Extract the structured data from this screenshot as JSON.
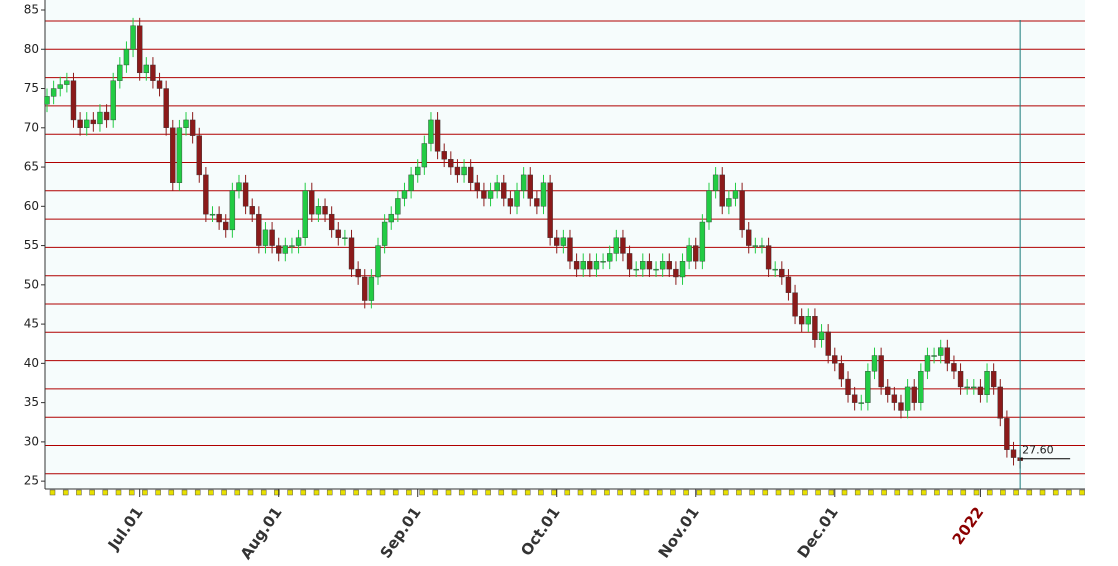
{
  "chart_data": {
    "type": "candlestick",
    "ylim": [
      24,
      85
    ],
    "yticks": [
      25,
      30,
      35,
      40,
      45,
      50,
      55,
      60,
      65,
      70,
      75,
      80,
      85
    ],
    "xticks": [
      {
        "value": 14,
        "label": "Jul.01"
      },
      {
        "value": 35,
        "label": "Aug.01"
      },
      {
        "value": 56,
        "label": "Sep.01"
      },
      {
        "value": 77,
        "label": "Oct.01"
      },
      {
        "value": 98,
        "label": "Nov.01"
      },
      {
        "value": 119,
        "label": "Dec.01"
      },
      {
        "value": 141,
        "label": "2022",
        "color": "#8b0000"
      }
    ],
    "up_color": "#22cc44",
    "down_color": "#8b1a1a",
    "grid_color": "#b00000",
    "last_label": {
      "value": 27.6,
      "label": "27.60"
    },
    "open": [
      73,
      74,
      75,
      75.5,
      76,
      71,
      70,
      71,
      70.5,
      72,
      71,
      76,
      78,
      80,
      83,
      77,
      78,
      76,
      75,
      70,
      63,
      70,
      71,
      69,
      64,
      59,
      59,
      58,
      57,
      62,
      63,
      60,
      59,
      55,
      57,
      55,
      54,
      55,
      55,
      56,
      62,
      59,
      60,
      59,
      57,
      56,
      56,
      52,
      51,
      48,
      51,
      55,
      58,
      59,
      61,
      62,
      64,
      65,
      68,
      71,
      67,
      66,
      65,
      64,
      65,
      63,
      62,
      61,
      62,
      63,
      61,
      60,
      62,
      64,
      61,
      60,
      63,
      56,
      55,
      56,
      53,
      52,
      53,
      52,
      53,
      53,
      54,
      56,
      54,
      52,
      52,
      53,
      52,
      52,
      53,
      52,
      51,
      53,
      55,
      53,
      58,
      62,
      64,
      60,
      61,
      62,
      57,
      55,
      55,
      55,
      52,
      52,
      51,
      49,
      46,
      45,
      46,
      43,
      44,
      41,
      40,
      38,
      36,
      35,
      35,
      39,
      41,
      37,
      36,
      35,
      34,
      37,
      35,
      39,
      41,
      41,
      42,
      40,
      39,
      37,
      37,
      37,
      36,
      39,
      37,
      33,
      29,
      28
    ],
    "high": [
      75,
      76,
      76.5,
      77,
      77,
      72,
      72,
      72,
      73,
      73,
      77,
      79,
      81,
      84,
      84,
      79,
      79,
      77,
      76,
      71,
      71,
      72,
      72,
      70,
      65,
      60,
      60,
      59,
      63,
      64,
      64,
      61,
      60,
      58,
      58,
      56,
      56,
      56,
      57,
      63,
      63,
      61,
      61,
      60,
      58,
      57,
      57,
      53,
      52,
      52,
      56,
      59,
      60,
      62,
      63,
      65,
      66,
      69,
      72,
      72,
      68,
      67,
      66,
      66,
      66,
      64,
      63,
      63,
      64,
      64,
      62,
      63,
      65,
      65,
      62,
      64,
      64,
      57,
      57,
      57,
      54,
      54,
      54,
      54,
      54,
      55,
      57,
      57,
      55,
      53,
      54,
      54,
      53,
      54,
      54,
      53,
      54,
      56,
      56,
      59,
      63,
      65,
      65,
      62,
      63,
      63,
      58,
      56,
      56,
      56,
      53,
      53,
      52,
      50,
      47,
      47,
      47,
      45,
      45,
      42,
      41,
      39,
      37,
      36,
      40,
      42,
      42,
      38,
      37,
      36,
      38,
      38,
      40,
      42,
      42,
      43,
      43,
      41,
      40,
      38,
      38,
      38,
      40,
      40,
      38,
      34,
      30,
      29
    ],
    "low": [
      72,
      73,
      74,
      74.5,
      70,
      69,
      69,
      69.5,
      69.5,
      70,
      70,
      75,
      77,
      79,
      76,
      76,
      75,
      74,
      69,
      62,
      62,
      69,
      68,
      63,
      58,
      58,
      57,
      56,
      56,
      61,
      59,
      58,
      54,
      54,
      54,
      53,
      53,
      54,
      54,
      55,
      58,
      58,
      58,
      56,
      55,
      55,
      51,
      50,
      47,
      47,
      50,
      54,
      57,
      58,
      60,
      61,
      63,
      64,
      67,
      66,
      65,
      64,
      63,
      63,
      62,
      61,
      60,
      60,
      61,
      60,
      59,
      59,
      61,
      60,
      59,
      59,
      55,
      54,
      54,
      52,
      51,
      51,
      51,
      51,
      52,
      52,
      53,
      53,
      51,
      51,
      51,
      51,
      51,
      51,
      51,
      50,
      50,
      52,
      52,
      52,
      57,
      61,
      59,
      59,
      60,
      56,
      54,
      54,
      54,
      51,
      51,
      50,
      48,
      45,
      44,
      44,
      42,
      42,
      40,
      39,
      37,
      35,
      34,
      34,
      34,
      38,
      36,
      35,
      34,
      33,
      33,
      34,
      34,
      38,
      40,
      40,
      39,
      38,
      36,
      36,
      36,
      35,
      35,
      36,
      32,
      28,
      27,
      26.6
    ],
    "close": [
      74,
      75,
      75.5,
      76,
      71,
      70,
      71,
      70.5,
      72,
      71,
      76,
      78,
      80,
      83,
      77,
      78,
      76,
      75,
      70,
      63,
      70,
      71,
      69,
      64,
      59,
      59,
      58,
      57,
      62,
      63,
      60,
      59,
      55,
      57,
      55,
      54,
      55,
      55,
      56,
      62,
      59,
      60,
      59,
      57,
      56,
      56,
      52,
      51,
      48,
      51,
      55,
      58,
      59,
      61,
      62,
      64,
      65,
      68,
      71,
      67,
      66,
      65,
      64,
      65,
      63,
      62,
      61,
      62,
      63,
      61,
      60,
      62,
      64,
      61,
      60,
      63,
      56,
      55,
      56,
      53,
      52,
      53,
      52,
      53,
      53,
      54,
      56,
      54,
      52,
      52,
      53,
      52,
      52,
      53,
      52,
      51,
      53,
      55,
      53,
      58,
      62,
      64,
      60,
      61,
      62,
      57,
      55,
      55,
      55,
      52,
      52,
      51,
      49,
      46,
      45,
      46,
      43,
      44,
      41,
      40,
      38,
      36,
      35,
      35,
      39,
      41,
      37,
      36,
      35,
      34,
      37,
      35,
      39,
      41,
      41,
      42,
      40,
      39,
      37,
      37,
      37,
      36,
      39,
      37,
      33,
      29,
      28,
      27.6
    ]
  }
}
